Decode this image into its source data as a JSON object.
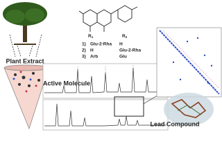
{
  "graphic": {
    "source_label": "Plant Extract",
    "molecule_label": "Active Molecule",
    "lead_label": "Lead Compound",
    "structure": {
      "r1": "R",
      "r1_sub": "1",
      "r2": "R",
      "r2_sub": "2"
    },
    "compounds": [
      {
        "num": "1)",
        "r1": "Glu-2-Rha",
        "r2": "H"
      },
      {
        "num": "2)",
        "r1": "H",
        "r2": "Glu-2-Rha"
      },
      {
        "num": "3)",
        "r1": "Arb",
        "r2": "Glu"
      }
    ]
  }
}
